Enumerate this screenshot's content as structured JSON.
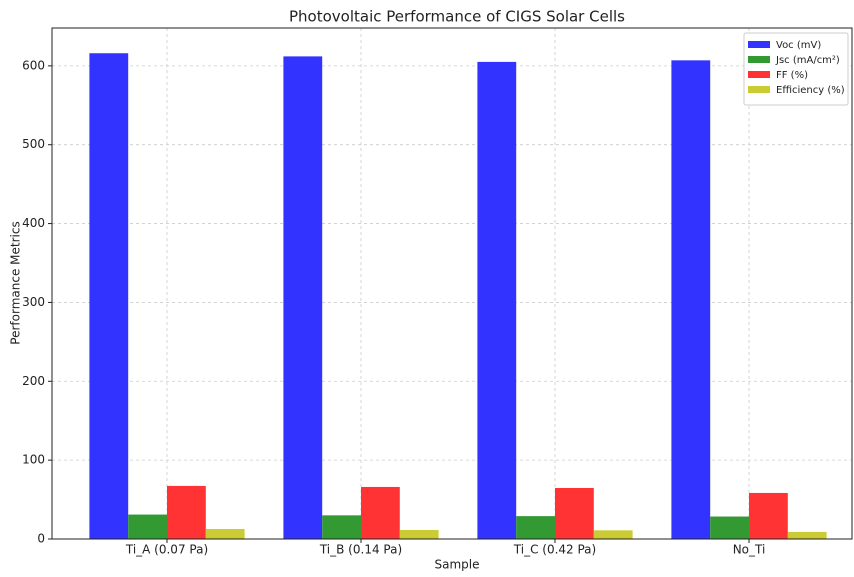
{
  "chart_data": {
    "type": "bar",
    "title": "Photovoltaic Performance of CIGS Solar Cells",
    "xlabel": "Sample",
    "ylabel": "Performance Metrics",
    "categories": [
      "Ti_A (0.07 Pa)",
      "Ti_B (0.14 Pa)",
      "Ti_C (0.42 Pa)",
      "No_Ti"
    ],
    "series": [
      {
        "name": "Voc (mV)",
        "color": "#3333ff",
        "values": [
          616,
          612,
          605,
          607
        ]
      },
      {
        "name": "Jsc (mA/cm²)",
        "color": "#339933",
        "values": [
          31,
          30,
          29,
          28.5
        ]
      },
      {
        "name": "FF (%)",
        "color": "#ff3333",
        "values": [
          67.3,
          66,
          64.7,
          58.4
        ]
      },
      {
        "name": "Efficiency (%)",
        "color": "#cbcb33",
        "values": [
          12.7,
          11.4,
          11,
          9
        ]
      }
    ],
    "ylim": [
      0,
      648
    ],
    "yticks": [
      0,
      100,
      200,
      300,
      400,
      500,
      600
    ],
    "grid": true,
    "legend": "upper right"
  }
}
